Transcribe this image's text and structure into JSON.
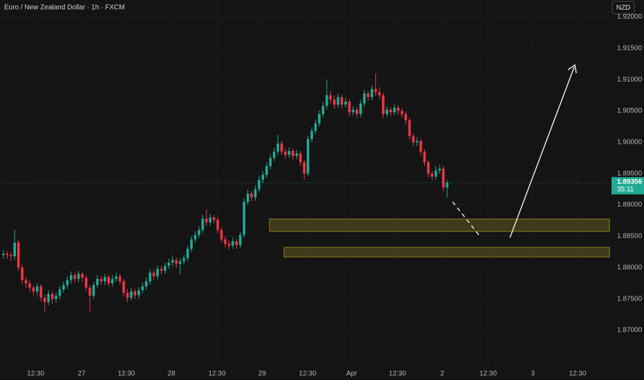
{
  "chart_data": {
    "type": "candlestick",
    "title": "Euro / New Zealand Dollar · 1h · FXCM",
    "currency": "NZD",
    "countdown": "35:11",
    "up_color": "#22ab94",
    "down_color": "#f23645",
    "open": [
      1.882,
      1.8822,
      1.882,
      1.8818,
      1.884,
      1.88,
      1.878,
      1.8775,
      1.8768,
      1.8762,
      1.877,
      1.8752,
      1.8745,
      1.8758,
      1.875,
      1.8755,
      1.8765,
      1.8772,
      1.878,
      1.8788,
      1.8782,
      1.879,
      1.8784,
      1.8768,
      1.8755,
      1.8772,
      1.8782,
      1.8778,
      1.8785,
      1.8775,
      1.8782,
      1.8786,
      1.8778,
      1.876,
      1.8752,
      1.8762,
      1.8756,
      1.8764,
      1.877,
      1.8778,
      1.8792,
      1.8786,
      1.8798,
      1.8795,
      1.8803,
      1.8808,
      1.8812,
      1.8806,
      1.881,
      1.8815,
      1.883,
      1.8845,
      1.8852,
      1.886,
      1.8878,
      1.8872,
      1.888,
      1.8876,
      1.886,
      1.8845,
      1.8838,
      1.8835,
      1.8842,
      1.8836,
      1.8852,
      1.8905,
      1.8918,
      1.8912,
      1.8925,
      1.894,
      1.8948,
      1.8962,
      1.8975,
      1.8985,
      1.8998,
      1.8985,
      1.898,
      1.8986,
      1.8978,
      1.8982,
      1.8968,
      1.895,
      1.9005,
      1.9018,
      1.903,
      1.9045,
      1.9058,
      1.9075,
      1.9068,
      1.906,
      1.9072,
      1.906,
      1.9065,
      1.9048,
      1.9052,
      1.9045,
      1.9062,
      1.9078,
      1.9072,
      1.9085,
      1.908,
      1.9075,
      1.9045,
      1.9052,
      1.9048,
      1.9055,
      1.905,
      1.9045,
      1.9035,
      1.901,
      1.9,
      1.9002,
      1.8985,
      1.8968,
      1.895,
      1.8945,
      1.8955,
      1.8958,
      1.8928
    ],
    "high": [
      1.8828,
      1.8826,
      1.8825,
      1.886,
      1.8845,
      1.8805,
      1.8785,
      1.878,
      1.8772,
      1.8775,
      1.8774,
      1.8757,
      1.8764,
      1.8762,
      1.876,
      1.877,
      1.8778,
      1.8786,
      1.8794,
      1.8792,
      1.8795,
      1.8793,
      1.8788,
      1.8772,
      1.8777,
      1.8788,
      1.8786,
      1.879,
      1.8789,
      1.8788,
      1.8792,
      1.879,
      1.8782,
      1.8765,
      1.8767,
      1.8766,
      1.8769,
      1.8776,
      1.8784,
      1.8798,
      1.8797,
      1.8804,
      1.8803,
      1.8808,
      1.8814,
      1.8818,
      1.8816,
      1.8815,
      1.882,
      1.8835,
      1.885,
      1.8858,
      1.8866,
      1.8884,
      1.8893,
      1.8886,
      1.8884,
      1.888,
      1.8865,
      1.885,
      1.8843,
      1.8848,
      1.8846,
      1.8857,
      1.891,
      1.8924,
      1.8922,
      1.8931,
      1.8946,
      1.8954,
      1.8968,
      1.8981,
      1.8991,
      1.9012,
      1.9002,
      1.899,
      1.8992,
      1.899,
      1.8988,
      1.8986,
      1.8972,
      1.901,
      1.9024,
      1.9036,
      1.9051,
      1.9064,
      1.91,
      1.9082,
      1.9074,
      1.9078,
      1.9076,
      1.9071,
      1.9069,
      1.9058,
      1.9056,
      1.9068,
      1.9084,
      1.9082,
      1.9091,
      1.911,
      1.9088,
      1.9079,
      1.9058,
      1.9056,
      1.9061,
      1.9059,
      1.9054,
      1.9049,
      1.9039,
      1.9014,
      1.9008,
      1.9006,
      1.8989,
      1.8972,
      1.8954,
      1.8962,
      1.8964,
      1.8962,
      1.894
    ],
    "low": [
      1.8814,
      1.8814,
      1.881,
      1.8812,
      1.8795,
      1.8774,
      1.8768,
      1.8762,
      1.8755,
      1.8756,
      1.8746,
      1.873,
      1.874,
      1.8742,
      1.8744,
      1.875,
      1.876,
      1.8766,
      1.8774,
      1.8776,
      1.8777,
      1.8778,
      1.8762,
      1.873,
      1.875,
      1.8767,
      1.8772,
      1.8772,
      1.877,
      1.877,
      1.8777,
      1.8773,
      1.8754,
      1.8745,
      1.8747,
      1.875,
      1.8751,
      1.8759,
      1.8765,
      1.8773,
      1.878,
      1.8781,
      1.8789,
      1.879,
      1.8798,
      1.8803,
      1.88,
      1.879,
      1.8805,
      1.881,
      1.8825,
      1.884,
      1.8847,
      1.8855,
      1.8866,
      1.8867,
      1.887,
      1.8855,
      1.884,
      1.8832,
      1.8829,
      1.883,
      1.883,
      1.8831,
      1.8848,
      1.89,
      1.8906,
      1.8907,
      1.892,
      1.8935,
      1.8943,
      1.8957,
      1.897,
      1.898,
      1.898,
      1.8974,
      1.8975,
      1.8972,
      1.8973,
      1.8962,
      1.894,
      1.8946,
      1.9,
      1.9013,
      1.9025,
      1.904,
      1.9053,
      1.9062,
      1.9054,
      1.9055,
      1.9054,
      1.9055,
      1.9042,
      1.9043,
      1.9039,
      1.904,
      1.9057,
      1.9066,
      1.9067,
      1.9074,
      1.9069,
      1.9039,
      1.904,
      1.9042,
      1.9043,
      1.9044,
      1.9039,
      1.9029,
      1.9004,
      1.8994,
      1.8994,
      1.8979,
      1.8962,
      1.8944,
      1.8939,
      1.894,
      1.895,
      1.8922,
      1.8912
    ],
    "close": [
      1.8822,
      1.882,
      1.8818,
      1.884,
      1.88,
      1.878,
      1.8775,
      1.8768,
      1.8762,
      1.877,
      1.8752,
      1.8745,
      1.8758,
      1.875,
      1.8755,
      1.8765,
      1.8772,
      1.878,
      1.8788,
      1.8782,
      1.879,
      1.8784,
      1.8768,
      1.8755,
      1.8772,
      1.8782,
      1.8778,
      1.8785,
      1.8775,
      1.8782,
      1.8786,
      1.8778,
      1.876,
      1.8752,
      1.8762,
      1.8756,
      1.8764,
      1.877,
      1.8778,
      1.8792,
      1.8786,
      1.8798,
      1.8795,
      1.8803,
      1.8808,
      1.8812,
      1.8806,
      1.881,
      1.8815,
      1.883,
      1.8845,
      1.8852,
      1.886,
      1.8878,
      1.8872,
      1.888,
      1.8876,
      1.886,
      1.8845,
      1.8838,
      1.8835,
      1.8842,
      1.8836,
      1.8852,
      1.8905,
      1.8918,
      1.8912,
      1.8925,
      1.894,
      1.8948,
      1.8962,
      1.8975,
      1.8985,
      1.8998,
      1.8985,
      1.898,
      1.8986,
      1.8978,
      1.8982,
      1.8968,
      1.895,
      1.9005,
      1.9018,
      1.903,
      1.9045,
      1.9058,
      1.9075,
      1.9068,
      1.906,
      1.9072,
      1.906,
      1.9065,
      1.9048,
      1.9052,
      1.9045,
      1.9062,
      1.9078,
      1.9072,
      1.9085,
      1.908,
      1.9075,
      1.9045,
      1.9052,
      1.9048,
      1.9055,
      1.905,
      1.9045,
      1.9035,
      1.901,
      1.9,
      1.9002,
      1.8985,
      1.8968,
      1.895,
      1.8945,
      1.8955,
      1.8958,
      1.8928,
      1.89356
    ],
    "xlim": [
      -0.9,
      160.8
    ],
    "xticks": [
      {
        "value": 8.6,
        "label": "12:30"
      },
      {
        "value": 20.8,
        "label": "27"
      },
      {
        "value": 32.7,
        "label": "12:30"
      },
      {
        "value": 44.7,
        "label": "28"
      },
      {
        "value": 56.8,
        "label": "12:30"
      },
      {
        "value": 68.8,
        "label": "29"
      },
      {
        "value": 80.9,
        "label": "12:30"
      },
      {
        "value": 92.6,
        "label": "Apr"
      },
      {
        "value": 104.8,
        "label": "12:30"
      },
      {
        "value": 116.7,
        "label": "2"
      },
      {
        "value": 128.9,
        "label": "12:30"
      },
      {
        "value": 140.8,
        "label": "3"
      },
      {
        "value": 152.7,
        "label": "12:30"
      }
    ],
    "ylim": [
      1.8646,
      1.9227
    ],
    "yticks": [
      {
        "value": 1.87,
        "label": "1.87000"
      },
      {
        "value": 1.875,
        "label": "1.87500"
      },
      {
        "value": 1.88,
        "label": "1.88000"
      },
      {
        "value": 1.885,
        "label": "1.88500"
      },
      {
        "value": 1.89,
        "label": "1.89000"
      },
      {
        "value": 1.895,
        "label": "1.89500"
      },
      {
        "value": 1.9,
        "label": "1.90000"
      },
      {
        "value": 1.905,
        "label": "1.90500"
      },
      {
        "value": 1.91,
        "label": "1.91000"
      },
      {
        "value": 1.915,
        "label": "1.91500"
      },
      {
        "value": 1.92,
        "label": "1.92000"
      }
    ],
    "grid": true
  }
}
